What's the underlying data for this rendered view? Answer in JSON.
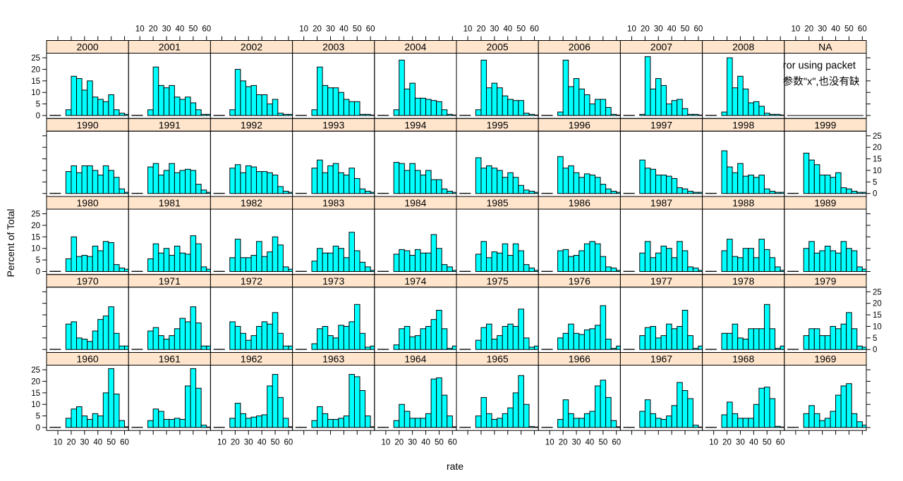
{
  "chart_data": {
    "type": "bar",
    "title": "",
    "xlabel": "rate",
    "ylabel": "Percent of Total",
    "x_ticks": [
      10,
      20,
      30,
      40,
      50,
      60
    ],
    "y_ticks": [
      0,
      5,
      10,
      15,
      20,
      25
    ],
    "xlim": [
      1.5,
      63
    ],
    "ylim": [
      -1.3,
      27
    ],
    "bin_start": 4,
    "bin_width": 4,
    "bar_color": "#00ffff",
    "strip_color": "#ffe5cc",
    "layout": {
      "columns": 10,
      "rows": 5,
      "as_table": false
    },
    "panels": [
      {
        "label": "1960",
        "values": [
          0.1,
          0.1,
          0,
          4,
          8,
          9,
          5,
          3.5,
          6,
          5,
          15,
          25.5,
          14.5,
          3,
          0.3
        ]
      },
      {
        "label": "1961",
        "values": [
          0.1,
          0.1,
          0,
          3,
          8,
          7,
          3.5,
          3.5,
          4,
          3.5,
          18,
          25.5,
          17,
          1,
          0.2
        ]
      },
      {
        "label": "1962",
        "values": [
          0.1,
          0.1,
          0,
          4,
          10.5,
          6,
          4,
          4.5,
          5,
          5.5,
          18,
          23,
          13,
          4,
          0.3
        ]
      },
      {
        "label": "1963",
        "values": [
          0.1,
          0.1,
          0,
          3,
          9,
          6,
          3.5,
          3.5,
          4,
          5,
          23,
          22,
          16,
          5,
          0.3
        ]
      },
      {
        "label": "1964",
        "values": [
          0.1,
          0.1,
          0,
          3,
          10,
          7,
          4,
          4,
          4,
          6,
          21,
          21.5,
          14,
          5,
          0.3
        ]
      },
      {
        "label": "1965",
        "values": [
          0.1,
          0.1,
          0,
          5,
          13,
          6,
          3.5,
          4,
          6,
          8.5,
          15,
          22.5,
          10,
          0.4,
          0.2
        ]
      },
      {
        "label": "1966",
        "values": [
          0.1,
          0.1,
          0,
          3.5,
          12,
          6,
          4,
          4,
          6,
          7,
          18,
          20.5,
          13,
          3,
          0.3
        ]
      },
      {
        "label": "1967",
        "values": [
          0.1,
          0.1,
          0,
          7,
          12,
          6,
          4,
          3.5,
          5,
          9.5,
          19.5,
          16,
          12.5,
          1,
          0.2
        ]
      },
      {
        "label": "1968",
        "values": [
          0.1,
          0.1,
          0,
          5.5,
          11,
          6,
          4,
          4,
          4,
          10,
          17,
          17.5,
          12.5,
          0.5,
          0.2
        ]
      },
      {
        "label": "1969",
        "values": [
          0.1,
          0.1,
          0,
          6,
          9.5,
          6,
          3,
          4,
          7,
          14,
          18,
          19,
          6,
          2.5,
          1
        ]
      },
      {
        "label": "1970",
        "values": [
          0.1,
          0.1,
          0,
          11,
          12,
          5,
          4.5,
          3.5,
          8,
          13,
          14.5,
          18.5,
          7,
          1.5,
          1.5
        ]
      },
      {
        "label": "1971",
        "values": [
          0.1,
          0.1,
          0,
          8,
          9.5,
          6,
          4.5,
          6,
          9,
          13.5,
          12,
          18.5,
          11.5,
          1.5,
          1.5
        ]
      },
      {
        "label": "1972",
        "values": [
          0.1,
          0.1,
          0,
          12,
          10,
          7,
          4,
          6,
          10,
          12,
          11,
          16,
          7,
          1.5,
          1.5
        ]
      },
      {
        "label": "1973",
        "values": [
          0.1,
          0.1,
          0,
          2.5,
          9,
          10,
          6,
          5,
          10.5,
          10,
          12,
          19.5,
          7,
          1,
          1.5
        ]
      },
      {
        "label": "1974",
        "values": [
          0.1,
          0.1,
          0,
          2,
          9,
          10,
          5.5,
          6,
          9,
          10,
          13,
          17,
          9,
          0.5,
          1.5
        ]
      },
      {
        "label": "1975",
        "values": [
          0.1,
          0.1,
          0,
          4,
          9.5,
          11,
          4.5,
          6,
          10,
          11,
          10,
          17.5,
          5,
          1,
          1.5
        ]
      },
      {
        "label": "1976",
        "values": [
          0.1,
          0.1,
          0,
          5,
          7,
          11,
          7,
          6.5,
          8.5,
          9,
          10.5,
          19,
          4.5,
          0.5,
          1.5
        ]
      },
      {
        "label": "1977",
        "values": [
          0.1,
          0.1,
          0,
          6,
          9.5,
          10,
          5,
          6,
          11,
          9,
          10,
          17,
          6,
          0.5,
          1.5
        ]
      },
      {
        "label": "1978",
        "values": [
          0.1,
          0.1,
          0,
          7,
          7,
          11,
          5,
          4.5,
          9,
          9,
          9,
          19.5,
          9,
          0.5,
          1.5
        ]
      },
      {
        "label": "1979",
        "values": [
          0.1,
          0.1,
          0,
          6,
          9,
          9,
          6,
          6,
          10,
          9,
          11,
          16,
          9,
          1.5,
          1
        ]
      },
      {
        "label": "1980",
        "values": [
          0.1,
          0.1,
          0,
          5.5,
          15,
          6.5,
          7,
          6.5,
          11,
          9,
          13,
          12.5,
          3,
          1.5,
          1
        ]
      },
      {
        "label": "1981",
        "values": [
          0.1,
          0.1,
          0,
          5.5,
          12,
          8,
          10,
          7,
          11,
          8,
          7.5,
          15.5,
          12,
          2,
          1
        ]
      },
      {
        "label": "1982",
        "values": [
          0.1,
          0.1,
          0,
          6,
          14,
          6,
          6,
          7,
          13,
          6.5,
          8.5,
          15,
          11.5,
          2,
          1
        ]
      },
      {
        "label": "1983",
        "values": [
          0.1,
          0.1,
          0,
          4.5,
          10,
          8,
          8,
          11,
          10,
          6,
          17,
          9,
          4,
          2,
          0.5
        ]
      },
      {
        "label": "1984",
        "values": [
          0.1,
          0.1,
          0,
          7.5,
          9.5,
          9,
          7,
          9.5,
          8,
          8,
          16,
          10,
          3,
          2,
          0.5
        ]
      },
      {
        "label": "1985",
        "values": [
          0.1,
          0.1,
          0,
          7.5,
          13,
          6,
          8.5,
          8,
          12,
          7,
          12,
          9,
          3,
          1.5,
          0.5
        ]
      },
      {
        "label": "1986",
        "values": [
          0.1,
          0.1,
          0,
          9,
          9.5,
          6.5,
          7,
          9,
          12,
          13,
          12,
          6.5,
          2,
          1.5,
          0.5
        ]
      },
      {
        "label": "1987",
        "values": [
          0.1,
          0.1,
          0,
          8,
          13,
          6,
          8,
          11,
          10,
          6,
          13,
          9,
          2,
          1.5,
          0.5
        ]
      },
      {
        "label": "1988",
        "values": [
          0.1,
          0.1,
          0,
          9,
          14,
          6.5,
          6,
          10,
          10,
          6,
          14,
          9.5,
          6,
          2,
          0.5
        ]
      },
      {
        "label": "1989",
        "values": [
          0.1,
          0.1,
          0,
          10,
          13,
          8,
          9,
          11,
          9,
          8,
          13,
          10,
          9,
          2,
          1
        ]
      },
      {
        "label": "1990",
        "values": [
          0.1,
          0.1,
          0,
          9.5,
          12,
          9,
          12,
          12,
          10,
          8,
          12,
          10,
          7,
          2,
          0.5
        ]
      },
      {
        "label": "1991",
        "values": [
          0.1,
          0.1,
          0,
          11.5,
          13,
          8,
          10,
          13,
          9,
          10,
          10.5,
          10,
          4,
          1.5,
          0.5
        ]
      },
      {
        "label": "1992",
        "values": [
          0.1,
          0.1,
          0,
          11,
          12.5,
          9,
          12,
          11.5,
          9.5,
          9.5,
          9,
          8,
          3,
          1,
          0.5
        ]
      },
      {
        "label": "1993",
        "values": [
          0.1,
          0.1,
          0,
          11,
          14.5,
          9,
          12,
          13,
          9,
          8,
          11,
          6.5,
          2,
          1,
          0.5
        ]
      },
      {
        "label": "1994",
        "values": [
          0.1,
          0.1,
          0,
          13.5,
          13,
          10,
          13,
          10,
          8,
          10,
          6,
          6,
          2,
          1,
          0.5
        ]
      },
      {
        "label": "1995",
        "values": [
          0.1,
          0.1,
          0,
          15.5,
          11,
          12,
          11,
          10,
          7,
          9,
          7,
          3.5,
          1.5,
          1,
          0.5
        ]
      },
      {
        "label": "1996",
        "values": [
          0.1,
          0.1,
          0,
          16,
          11,
          12,
          9,
          7,
          8.5,
          8,
          7,
          4,
          2,
          1,
          0.5
        ]
      },
      {
        "label": "1997",
        "values": [
          0.1,
          0.1,
          0,
          14.5,
          11,
          10.5,
          8,
          8,
          7.5,
          6.5,
          2.5,
          2,
          1,
          0.5,
          0.5
        ]
      },
      {
        "label": "1998",
        "values": [
          0.1,
          0.1,
          0,
          18.5,
          11.5,
          9,
          13,
          7.5,
          8,
          7,
          8,
          2,
          1,
          0.5,
          0.5
        ]
      },
      {
        "label": "1999",
        "values": [
          0.1,
          0.1,
          0,
          17.5,
          14.5,
          12.5,
          8,
          8,
          7,
          9,
          2.5,
          2,
          1,
          0.5,
          0.5
        ]
      },
      {
        "label": "2000",
        "values": [
          0.1,
          0.1,
          0,
          2.5,
          17,
          16,
          11,
          15,
          8,
          7,
          6,
          9,
          2.5,
          1,
          0.5
        ]
      },
      {
        "label": "2001",
        "values": [
          0.1,
          0.1,
          0,
          2.5,
          21,
          13,
          12,
          13,
          8,
          7,
          8,
          5.5,
          2.5,
          0.5,
          0.5
        ]
      },
      {
        "label": "2002",
        "values": [
          0.1,
          0.1,
          0,
          2.5,
          20,
          15,
          12.5,
          13,
          9,
          9,
          5,
          7,
          1,
          0.5,
          0.5
        ]
      },
      {
        "label": "2003",
        "values": [
          0.1,
          0.1,
          0,
          2.5,
          21,
          13,
          12,
          12,
          10,
          7,
          6,
          6,
          0.5,
          0.5,
          0.2
        ]
      },
      {
        "label": "2004",
        "values": [
          0.1,
          0.1,
          0,
          2.5,
          24,
          11.5,
          14,
          7.5,
          7.5,
          7,
          6.5,
          6,
          2.5,
          0.5,
          0.2
        ]
      },
      {
        "label": "2005",
        "values": [
          0.1,
          0.1,
          0,
          2.5,
          24,
          12,
          14,
          12,
          8.5,
          7,
          6.5,
          6.5,
          1,
          0.5,
          0.2
        ]
      },
      {
        "label": "2006",
        "values": [
          0.1,
          0.1,
          0,
          1.5,
          24,
          12.5,
          16,
          11.5,
          9,
          5,
          7,
          7,
          3.5,
          0.5,
          0.2
        ]
      },
      {
        "label": "2007",
        "values": [
          0.1,
          0.1,
          0,
          0.5,
          25.5,
          11.5,
          16,
          13,
          5,
          6.5,
          7,
          3,
          0.5,
          0.5,
          0.2
        ]
      },
      {
        "label": "2008",
        "values": [
          0.1,
          0.1,
          0,
          1.5,
          25,
          12,
          17,
          11.5,
          5.5,
          6,
          4,
          1,
          0.5,
          0.5,
          0.2
        ]
      },
      {
        "label": "NA",
        "values": [],
        "message_lines": [
          "ror using packet",
          "参数\"x\",也没有缺"
        ]
      }
    ]
  }
}
